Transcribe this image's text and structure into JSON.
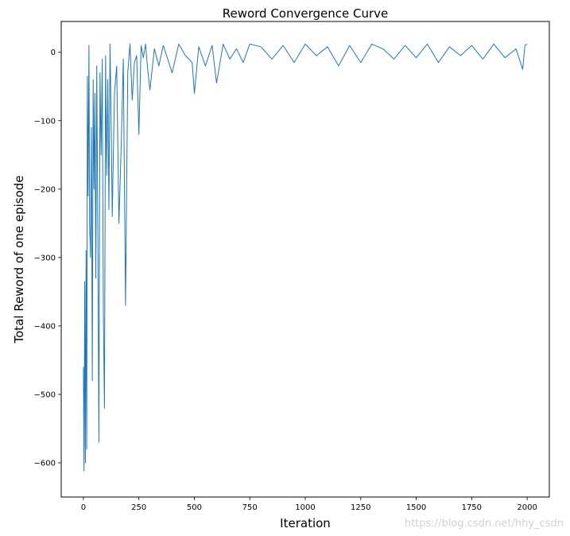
{
  "chart_data": {
    "type": "line",
    "title": "Reword Convergence Curve",
    "xlabel": "Iteration",
    "ylabel": "Total Reword of one episode",
    "xlim": [
      -100,
      2100
    ],
    "ylim": [
      -650,
      45
    ],
    "xticks": [
      0,
      250,
      500,
      750,
      1000,
      1250,
      1500,
      1750,
      2000
    ],
    "yticks": [
      0,
      -100,
      -200,
      -300,
      -400,
      -500,
      -600
    ],
    "ytick_labels": [
      "0",
      "−100",
      "−200",
      "−300",
      "−400",
      "−500",
      "−600"
    ],
    "grid": false,
    "legend": "none",
    "series": [
      {
        "color": "#1f77b4",
        "x_range": [
          0,
          2000
        ],
        "x": [
          0,
          3,
          6,
          9,
          12,
          15,
          18,
          21,
          25,
          28,
          32,
          36,
          40,
          44,
          48,
          52,
          56,
          60,
          65,
          70,
          75,
          80,
          85,
          90,
          95,
          100,
          105,
          110,
          115,
          120,
          125,
          130,
          140,
          150,
          160,
          170,
          180,
          190,
          200,
          210,
          220,
          230,
          240,
          250,
          260,
          270,
          280,
          290,
          300,
          320,
          340,
          360,
          380,
          400,
          430,
          460,
          490,
          500,
          520,
          550,
          580,
          600,
          630,
          660,
          690,
          720,
          750,
          800,
          850,
          900,
          950,
          1000,
          1050,
          1100,
          1150,
          1200,
          1250,
          1300,
          1350,
          1400,
          1450,
          1500,
          1550,
          1600,
          1650,
          1700,
          1750,
          1800,
          1850,
          1900,
          1950,
          1980,
          1990,
          2000
        ],
        "y": [
          -460,
          -612,
          -335,
          -600,
          -290,
          -580,
          -35,
          -210,
          10,
          -250,
          -300,
          -110,
          -480,
          -40,
          -200,
          -60,
          -330,
          -20,
          -250,
          -570,
          -30,
          -150,
          -10,
          -380,
          -520,
          -5,
          -180,
          -40,
          -230,
          12,
          -100,
          -240,
          -60,
          -20,
          -250,
          -140,
          -10,
          -370,
          -30,
          12,
          -70,
          -15,
          -5,
          -120,
          10,
          -8,
          12,
          -25,
          -55,
          5,
          -20,
          10,
          -10,
          -30,
          12,
          -5,
          -15,
          -60,
          8,
          -20,
          10,
          -45,
          12,
          -10,
          5,
          -15,
          12,
          8,
          -10,
          10,
          -15,
          12,
          -5,
          8,
          -20,
          10,
          -15,
          12,
          5,
          -10,
          10,
          -8,
          12,
          -15,
          8,
          -5,
          10,
          -10,
          12,
          -8,
          5,
          -25,
          10,
          12
        ]
      }
    ]
  },
  "watermark": "https://blog.csdn.net/hhy_csdn"
}
